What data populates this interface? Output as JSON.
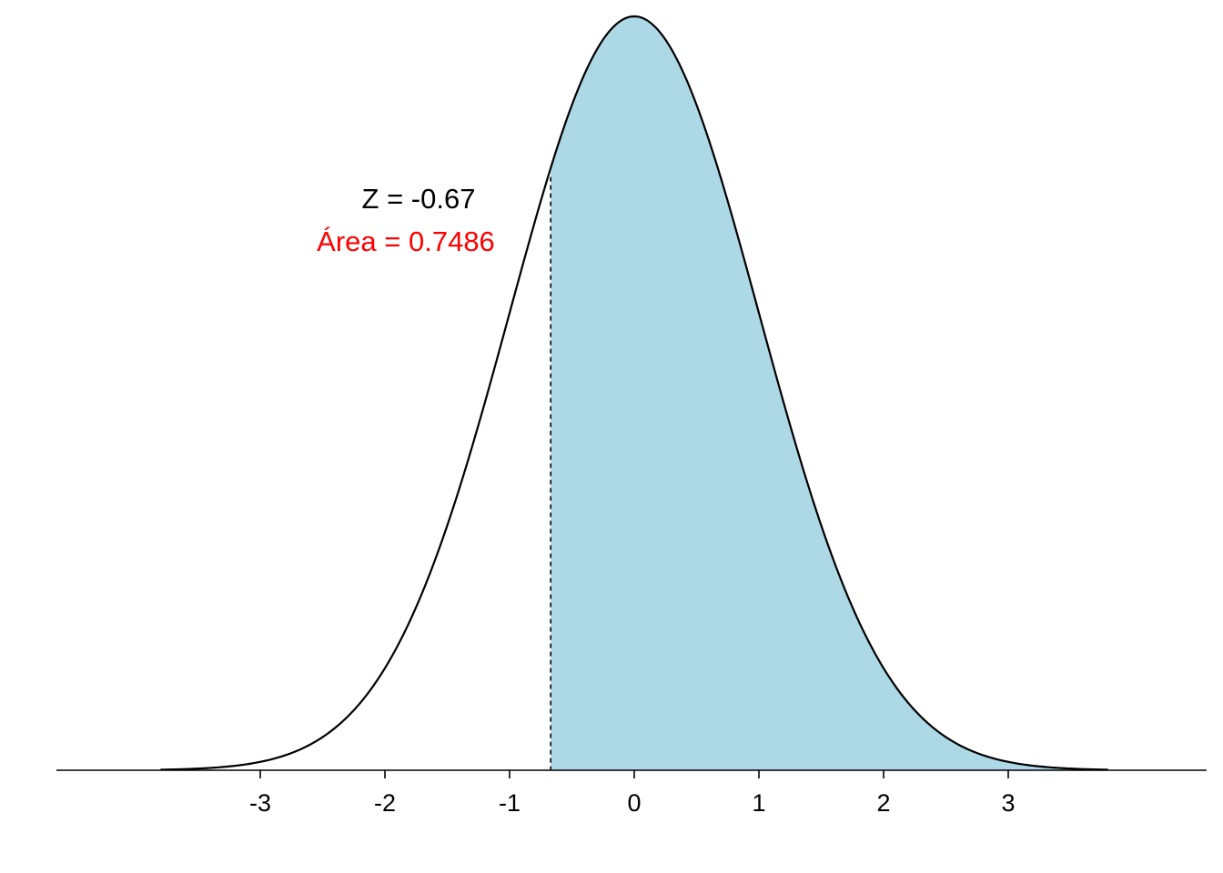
{
  "chart_data": {
    "type": "area",
    "distribution": "standard normal",
    "x_range": [
      -3.8,
      3.8
    ],
    "xlim": [
      -4.6,
      4.6
    ],
    "x_ticks": [
      -3,
      -2,
      -1,
      0,
      1,
      2,
      3
    ],
    "x_tick_labels": [
      "-3",
      "-2",
      "-1",
      "0",
      "1",
      "2",
      "3"
    ],
    "y_axis_shown": false,
    "grid": false,
    "shaded_region": {
      "from": -0.67,
      "to": 3.8
    },
    "cutoff_line": {
      "x": -0.67,
      "style": "dashed"
    },
    "annotations": {
      "z_label": "Z = -0.67",
      "area_label": "Área = 0.7486"
    },
    "colors": {
      "fill": "#add8e6",
      "curve": "#000000",
      "area_text": "#ff0000",
      "z_text": "#000000"
    }
  }
}
